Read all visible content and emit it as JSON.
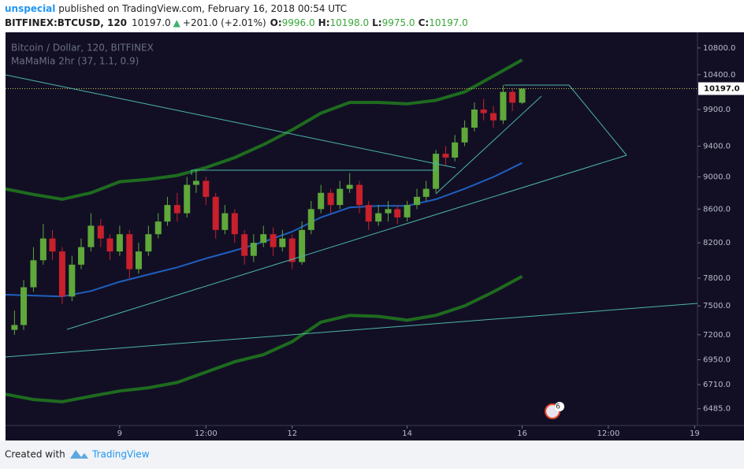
{
  "header": {
    "user": "unspecial",
    "published": " published on TradingView.com, February 16, 2018 00:54 UTC",
    "symbol": "BITFINEX:BTCUSD, 120",
    "price": "10197.0",
    "arrow": "▲",
    "change": "+201.0 (+2.01%)",
    "o_label": "O:",
    "o": "9996.0",
    "h_label": "H:",
    "h": "10198.0",
    "l_label": "L:",
    "l": "9975.0",
    "c_label": "C:",
    "c": "10197.0"
  },
  "footer": {
    "created": "Created with",
    "brand": "TradingView"
  },
  "chart_data": {
    "type": "candlestick",
    "legend_title": "Bitcoin / Dollar, 120, BITFINEX",
    "indicator_label": "MaMaMia 2hr (37, 1.1, 0.9)",
    "event_badge": "6",
    "log_scale": true,
    "up_color": "#5fa83a",
    "down_color": "#c8202c",
    "x": [
      7.17,
      7.33,
      7.5,
      7.67,
      7.83,
      8.0,
      8.17,
      8.33,
      8.5,
      8.67,
      8.83,
      9.0,
      9.17,
      9.33,
      9.5,
      9.67,
      9.83,
      10.0,
      10.17,
      10.33,
      10.5,
      10.67,
      10.83,
      11.0,
      11.17,
      11.33,
      11.5,
      11.67,
      11.83,
      12.0,
      12.17,
      12.33,
      12.5,
      12.67,
      12.83,
      13.0,
      13.17,
      13.33,
      13.5,
      13.67,
      13.83,
      14.0,
      14.17,
      14.33,
      14.5,
      14.67,
      14.83,
      15.0,
      15.17,
      15.33,
      15.5,
      15.67,
      15.83,
      16.0
    ],
    "open": [
      7250,
      7300,
      7700,
      8000,
      8250,
      8100,
      7600,
      7950,
      8150,
      8400,
      8250,
      8100,
      8300,
      7900,
      8100,
      8300,
      8450,
      8650,
      8550,
      8900,
      8950,
      8750,
      8350,
      8550,
      8300,
      8050,
      8200,
      8300,
      8150,
      8250,
      7980,
      8350,
      8600,
      8800,
      8650,
      8850,
      8900,
      8650,
      8450,
      8550,
      8600,
      8500,
      8650,
      8750,
      8850,
      9300,
      9250,
      9450,
      9650,
      9900,
      9850,
      9750,
      10150,
      9996
    ],
    "high": [
      7450,
      7780,
      8150,
      8420,
      8350,
      8150,
      8050,
      8250,
      8550,
      8480,
      8300,
      8400,
      8350,
      8200,
      8400,
      8550,
      8750,
      8800,
      9000,
      9100,
      9000,
      8800,
      8650,
      8600,
      8350,
      8300,
      8400,
      8380,
      8350,
      8300,
      8450,
      8700,
      8900,
      8850,
      8950,
      9050,
      8950,
      8700,
      8650,
      8700,
      8650,
      8700,
      8850,
      8950,
      9350,
      9400,
      9550,
      9750,
      10000,
      10050,
      9950,
      10250,
      10200,
      10198
    ],
    "low": [
      7200,
      7250,
      7650,
      7950,
      8000,
      7520,
      7550,
      7900,
      8100,
      8150,
      8000,
      8050,
      7800,
      7850,
      8050,
      8250,
      8400,
      8450,
      8500,
      8800,
      8650,
      8250,
      8300,
      8200,
      7950,
      7980,
      8150,
      8050,
      8100,
      7900,
      7950,
      8300,
      8550,
      8550,
      8600,
      8800,
      8550,
      8350,
      8400,
      8450,
      8420,
      8450,
      8600,
      8700,
      8800,
      9150,
      9200,
      9400,
      9600,
      9750,
      9650,
      9700,
      9880,
      9975
    ],
    "close": [
      7300,
      7700,
      8000,
      8250,
      8100,
      7600,
      7950,
      8150,
      8400,
      8250,
      8100,
      8300,
      7900,
      8100,
      8300,
      8450,
      8650,
      8550,
      8900,
      8950,
      8750,
      8350,
      8550,
      8300,
      8050,
      8200,
      8300,
      8150,
      8250,
      7980,
      8350,
      8600,
      8800,
      8650,
      8850,
      8900,
      8650,
      8450,
      8550,
      8600,
      8500,
      8650,
      8750,
      8850,
      9300,
      9250,
      9450,
      9650,
      9900,
      9850,
      9750,
      10150,
      9996,
      10197
    ],
    "indicator_x": [
      7,
      7.5,
      8,
      8.5,
      9,
      9.5,
      10,
      10.5,
      11,
      11.5,
      12,
      12.5,
      13,
      13.5,
      14,
      14.5,
      15,
      15.5,
      16
    ],
    "indicators": [
      {
        "color": "#1e6b1e",
        "values": [
          8850,
          8780,
          8720,
          8800,
          8940,
          8970,
          9020,
          9120,
          9250,
          9420,
          9620,
          9850,
          10000,
          10000,
          9980,
          10030,
          10150,
          10380,
          10620
        ]
      },
      {
        "color": "#1e6b1e",
        "values": [
          6620,
          6570,
          6550,
          6600,
          6650,
          6680,
          6730,
          6830,
          6930,
          7000,
          7130,
          7330,
          7400,
          7390,
          7350,
          7400,
          7500,
          7650,
          7820
        ]
      },
      {
        "color": "#1f5fbf",
        "values": [
          7620,
          7610,
          7600,
          7660,
          7760,
          7840,
          7920,
          8020,
          8110,
          8210,
          8330,
          8500,
          8620,
          8640,
          8640,
          8720,
          8850,
          9000,
          9180
        ]
      }
    ],
    "last_price": {
      "value": 10197,
      "label": "10197.0"
    },
    "xlim": [
      7.014,
      19.05
    ],
    "xticks": [
      {
        "value": 9,
        "label": "9"
      },
      {
        "value": 10.5,
        "label": "12:00"
      },
      {
        "value": 12,
        "label": "12"
      },
      {
        "value": 14,
        "label": "14"
      },
      {
        "value": 16,
        "label": "16"
      },
      {
        "value": 17.5,
        "label": "12:00"
      },
      {
        "value": 19,
        "label": "19"
      }
    ],
    "ylim": [
      6333,
      11030
    ],
    "yticks": [
      {
        "value": 10800,
        "label": "10800.0"
      },
      {
        "value": 10400,
        "label": "10400.0"
      },
      {
        "value": 9900,
        "label": "9900.0"
      },
      {
        "value": 9400,
        "label": "9400.0"
      },
      {
        "value": 9000,
        "label": "9000.0"
      },
      {
        "value": 8600,
        "label": "8600.0"
      },
      {
        "value": 8200,
        "label": "8200.0"
      },
      {
        "value": 7800,
        "label": "7800.0"
      },
      {
        "value": 7500,
        "label": "7500.0"
      },
      {
        "value": 7200,
        "label": "7200.0"
      },
      {
        "value": 6950,
        "label": "6950.0"
      },
      {
        "value": 6710,
        "label": "6710.0"
      },
      {
        "value": 6485,
        "label": "6485.0"
      }
    ]
  }
}
